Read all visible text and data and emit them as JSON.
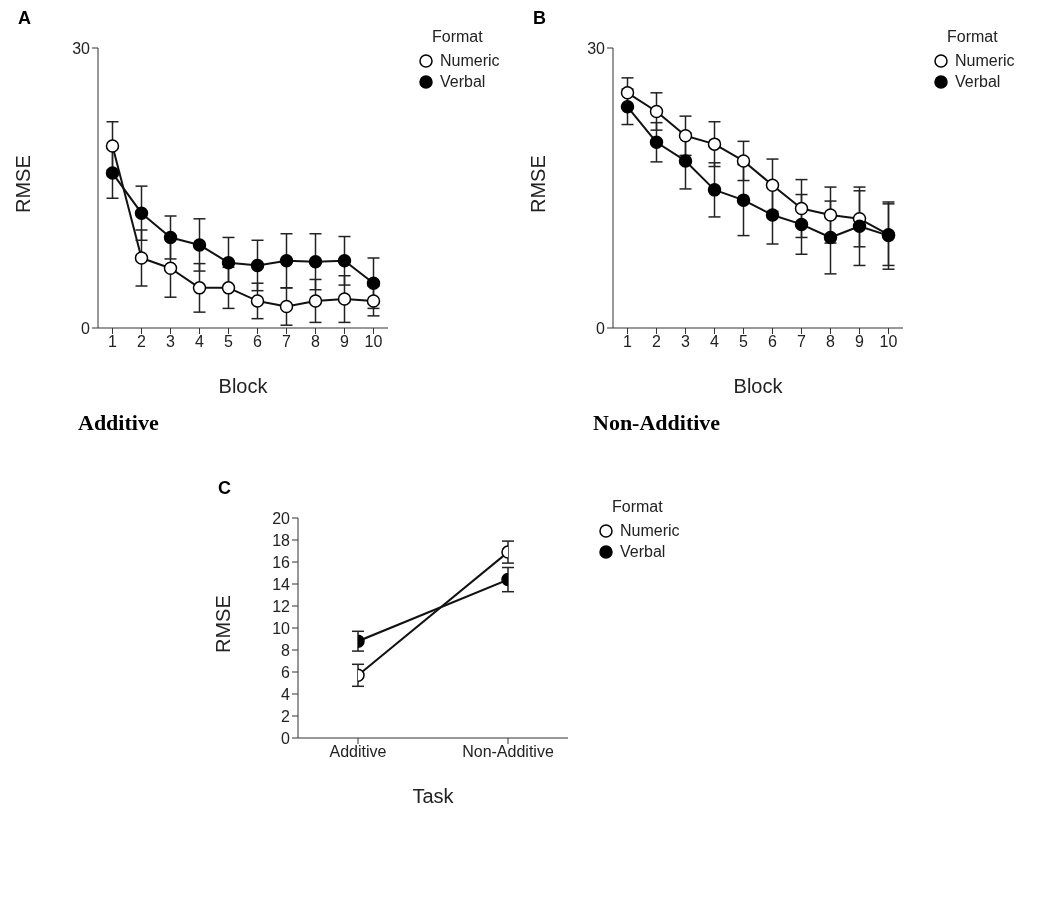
{
  "chart_data": [
    {
      "type": "line",
      "title": "A",
      "xlabel": "Block",
      "ylabel": "RMSE",
      "legend_title": "Format",
      "legend": "right",
      "marker": "circle",
      "annotations": [
        "Additive"
      ],
      "x": [
        1,
        2,
        3,
        4,
        5,
        6,
        7,
        8,
        9,
        10
      ],
      "xlim": [
        0.5,
        10.5
      ],
      "xticks": [
        1,
        2,
        3,
        4,
        5,
        6,
        7,
        8,
        9,
        10
      ],
      "ylim": [
        0,
        30
      ],
      "yticks": [
        0,
        30
      ],
      "series": [
        {
          "name": "Numeric",
          "color": "#ffffff",
          "values": [
            19.5,
            7.5,
            6.4,
            4.3,
            4.3,
            2.9,
            2.3,
            2.9,
            3.1,
            2.9
          ],
          "errors": [
            2.6,
            3.0,
            3.1,
            2.6,
            2.2,
            1.9,
            2.0,
            2.3,
            2.5,
            1.6
          ]
        },
        {
          "name": "Verbal",
          "color": "#000000",
          "values": [
            16.6,
            12.3,
            9.7,
            8.9,
            7.0,
            6.7,
            7.2,
            7.1,
            7.2,
            4.8
          ],
          "errors": [
            2.7,
            2.9,
            2.3,
            2.8,
            2.7,
            2.7,
            2.9,
            3.0,
            2.6,
            2.7
          ]
        }
      ]
    },
    {
      "type": "line",
      "title": "B",
      "xlabel": "Block",
      "ylabel": "RMSE",
      "legend_title": "Format",
      "legend": "right",
      "marker": "circle",
      "annotations": [
        "Non-Additive"
      ],
      "x": [
        1,
        2,
        3,
        4,
        5,
        6,
        7,
        8,
        9,
        10
      ],
      "xlim": [
        0.5,
        10.5
      ],
      "xticks": [
        1,
        2,
        3,
        4,
        5,
        6,
        7,
        8,
        9,
        10
      ],
      "ylim": [
        0,
        30
      ],
      "yticks": [
        0,
        30
      ],
      "series": [
        {
          "name": "Numeric",
          "color": "#ffffff",
          "values": [
            25.2,
            23.2,
            20.6,
            19.7,
            17.9,
            15.3,
            12.8,
            12.1,
            11.7,
            10.0
          ],
          "errors": [
            1.6,
            2.0,
            2.1,
            2.4,
            2.1,
            2.8,
            3.1,
            3.0,
            3.0,
            3.3
          ]
        },
        {
          "name": "Verbal",
          "color": "#000000",
          "values": [
            23.7,
            19.9,
            17.9,
            14.8,
            13.7,
            12.1,
            11.1,
            9.7,
            10.9,
            9.9
          ],
          "errors": [
            1.9,
            2.1,
            3.0,
            2.9,
            3.8,
            3.1,
            3.2,
            3.9,
            4.2,
            3.6
          ]
        }
      ]
    },
    {
      "type": "line",
      "title": "C",
      "xlabel": "Task",
      "ylabel": "RMSE",
      "legend_title": "Format",
      "legend": "right",
      "marker": "circle",
      "categories": [
        "Additive",
        "Non-Additive"
      ],
      "ylim": [
        0,
        20
      ],
      "yticks": [
        0,
        2,
        4,
        6,
        8,
        10,
        12,
        14,
        16,
        18,
        20
      ],
      "series": [
        {
          "name": "Numeric",
          "color": "#ffffff",
          "values": [
            5.7,
            16.9
          ],
          "errors": [
            1.0,
            1.0
          ]
        },
        {
          "name": "Verbal",
          "color": "#000000",
          "values": [
            8.8,
            14.4
          ],
          "errors": [
            0.9,
            1.1
          ]
        }
      ]
    }
  ]
}
